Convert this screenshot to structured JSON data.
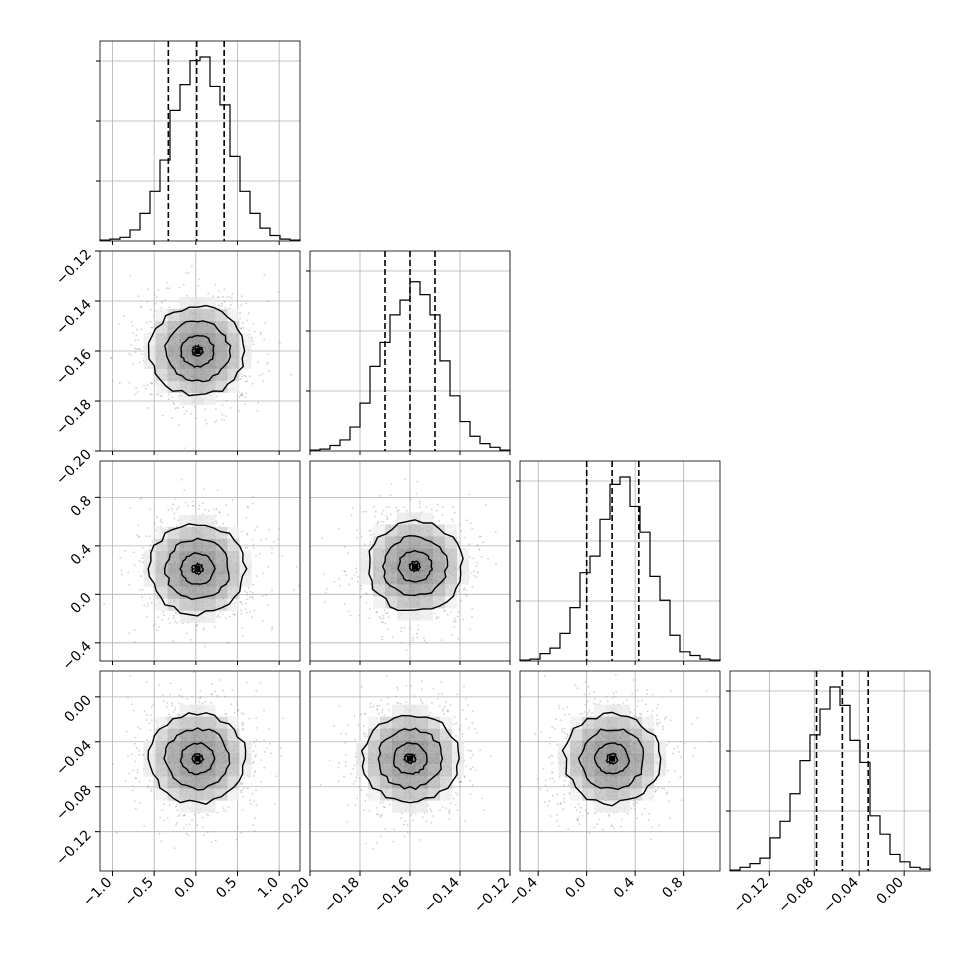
{
  "chart_data": {
    "type": "corner",
    "parameters": [
      {
        "range": [
          -1.15,
          1.25
        ],
        "xticks": [
          -1.0,
          -0.5,
          0.0,
          0.5,
          1.0
        ],
        "yticks": [],
        "tick_labels": [
          "−1.0",
          "−0.5",
          "0.0",
          "0.5",
          "1.0"
        ],
        "quantiles": [
          -0.33,
          0.01,
          0.34
        ],
        "hist": [
          0.005,
          0.01,
          0.02,
          0.06,
          0.15,
          0.27,
          0.44,
          0.71,
          0.85,
          0.98,
          1.0,
          0.84,
          0.74,
          0.46,
          0.27,
          0.15,
          0.07,
          0.03,
          0.01,
          0.005
        ]
      },
      {
        "range": [
          -0.2,
          -0.12
        ],
        "xticks": [
          -0.2,
          -0.18,
          -0.16,
          -0.14,
          -0.12
        ],
        "yticks": [
          -0.2,
          -0.18,
          -0.16,
          -0.14,
          -0.12
        ],
        "tick_labels": [
          "−0.20",
          "−0.18",
          "−0.16",
          "−0.14",
          "−0.12"
        ],
        "quantiles": [
          -0.17,
          -0.16,
          -0.15
        ],
        "hist": [
          0.005,
          0.01,
          0.03,
          0.06,
          0.13,
          0.26,
          0.46,
          0.59,
          0.74,
          0.82,
          0.92,
          0.85,
          0.74,
          0.49,
          0.3,
          0.16,
          0.08,
          0.04,
          0.02,
          0.005
        ]
      },
      {
        "range": [
          -0.55,
          1.1
        ],
        "xticks": [
          -0.4,
          0.0,
          0.4,
          0.8
        ],
        "yticks": [
          -0.4,
          0.0,
          0.4,
          0.8
        ],
        "tick_labels": [
          "−0.4",
          "0.0",
          "0.4",
          "0.8"
        ],
        "quantiles": [
          0.0,
          0.21,
          0.43
        ],
        "hist": [
          0.005,
          0.01,
          0.04,
          0.07,
          0.15,
          0.29,
          0.48,
          0.57,
          0.77,
          0.96,
          1.0,
          0.84,
          0.7,
          0.46,
          0.33,
          0.14,
          0.05,
          0.03,
          0.01,
          0.005
        ]
      },
      {
        "range": [
          -0.155,
          0.023
        ],
        "xticks": [
          -0.12,
          -0.08,
          -0.04,
          0.0
        ],
        "yticks": [
          -0.12,
          -0.08,
          -0.04,
          0.0
        ],
        "tick_labels": [
          "−0.12",
          "−0.08",
          "−0.04",
          "0.00"
        ],
        "quantiles": [
          -0.078,
          -0.055,
          -0.032
        ],
        "hist": [
          0.005,
          0.02,
          0.04,
          0.07,
          0.18,
          0.27,
          0.42,
          0.6,
          0.74,
          0.88,
          1.0,
          0.9,
          0.71,
          0.59,
          0.3,
          0.2,
          0.09,
          0.05,
          0.02,
          0.01
        ]
      }
    ],
    "pair_modes": [
      {
        "row": 1,
        "col": 0,
        "x": 0.02,
        "y": -0.16
      },
      {
        "row": 2,
        "col": 0,
        "x": 0.02,
        "y": 0.21
      },
      {
        "row": 2,
        "col": 1,
        "x": -0.158,
        "y": 0.23
      },
      {
        "row": 3,
        "col": 0,
        "x": 0.02,
        "y": -0.055
      },
      {
        "row": 3,
        "col": 1,
        "x": -0.16,
        "y": -0.055
      },
      {
        "row": 3,
        "col": 2,
        "x": 0.21,
        "y": -0.055
      }
    ],
    "contour_sigma_fractions": [
      0.08,
      0.26,
      0.5,
      0.75
    ],
    "grid": true,
    "colors": {
      "line": "#000000",
      "grid": "#b0b0b0",
      "scatter": "#9a9a9a"
    }
  }
}
